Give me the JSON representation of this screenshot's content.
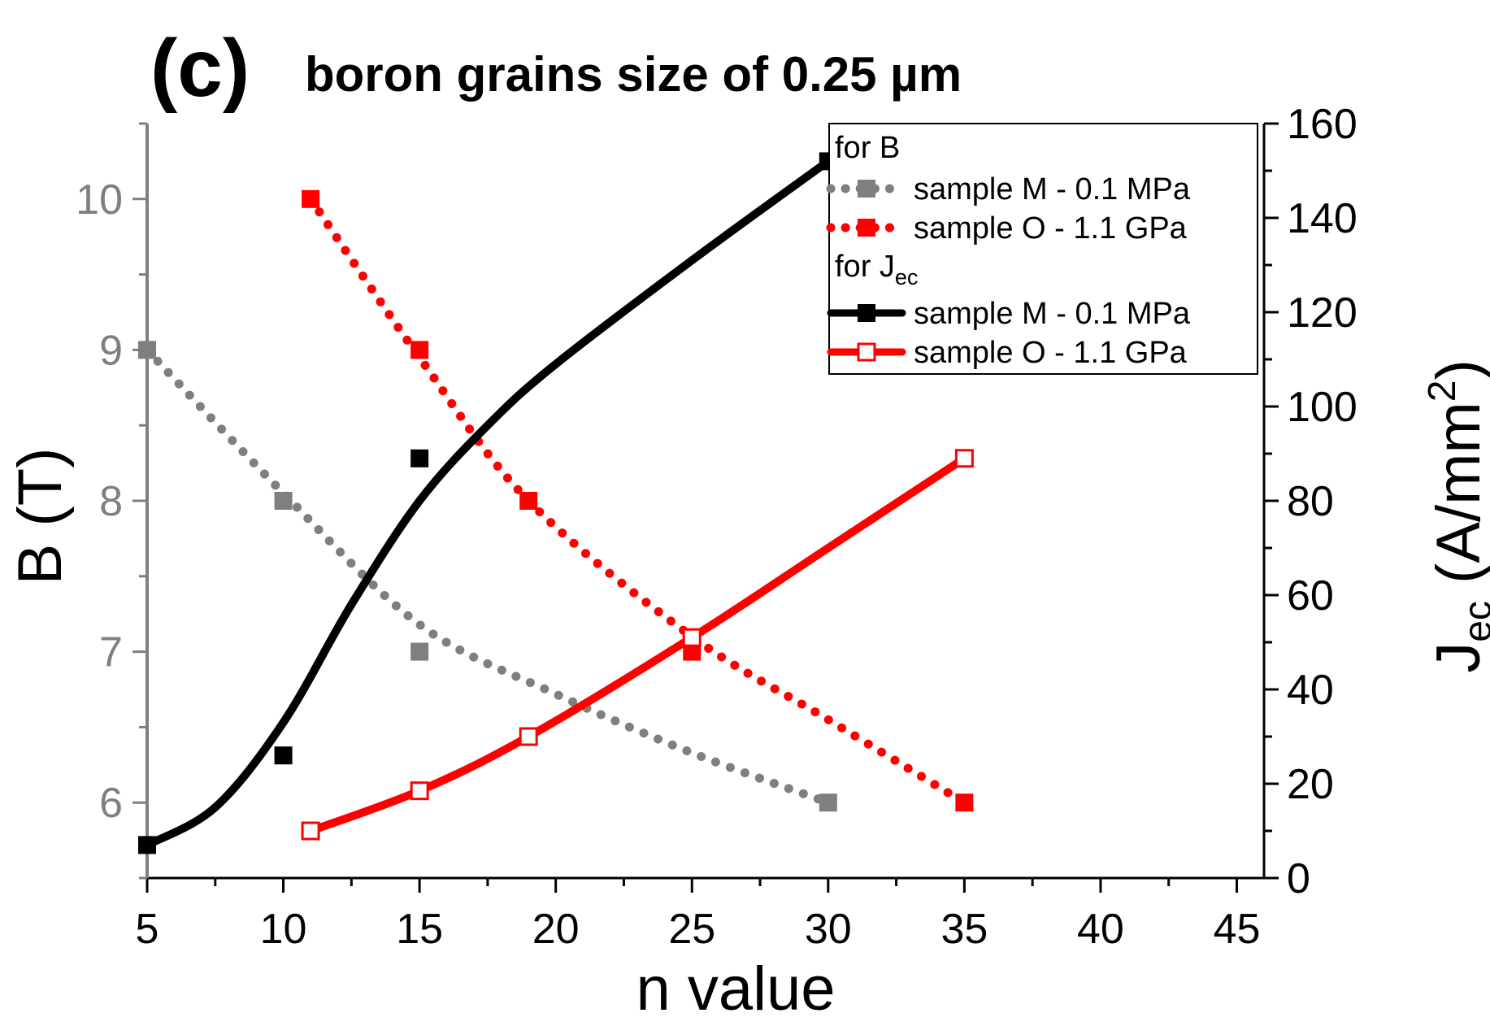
{
  "chart_data": {
    "type": "line",
    "panel_label": "(c)",
    "title": "boron grains size of 0.25 µm",
    "xlabel": "n value",
    "ylabel_left": "B (T)",
    "ylabel_right_main": "J",
    "ylabel_right_sub": "ec",
    "ylabel_right_unit": " (A/mm",
    "ylabel_right_sup": "2",
    "ylabel_right_close": ")",
    "xlim": [
      5,
      46
    ],
    "ylim_left": [
      5.5,
      10.5
    ],
    "ylim_right": [
      0,
      160
    ],
    "x_ticks": [
      5,
      10,
      15,
      20,
      25,
      30,
      35,
      40,
      45
    ],
    "y_left_ticks": [
      6,
      7,
      8,
      9,
      10
    ],
    "y_right_ticks": [
      0,
      20,
      40,
      60,
      80,
      100,
      120,
      140,
      160
    ],
    "legend": {
      "group_b_label": "for B",
      "group_j_main": "for J",
      "group_j_sub": "ec",
      "entries": [
        {
          "id": "bM",
          "label": "sample M - 0.1 MPa"
        },
        {
          "id": "bO",
          "label": "sample O - 1.1 GPa"
        },
        {
          "id": "jM",
          "label": "sample M - 0.1 MPa"
        },
        {
          "id": "jO",
          "label": "sample O - 1.1 GPa"
        }
      ]
    },
    "series": [
      {
        "id": "bM",
        "name": "for B: sample M - 0.1 MPa",
        "axis": "left",
        "style": "dotted",
        "color": "#7f7f7f",
        "marker": "filled-square",
        "points": [
          [
            5,
            9.0
          ],
          [
            10,
            8.0
          ],
          [
            15,
            7.0
          ],
          [
            30,
            6.0
          ]
        ],
        "fit": [
          [
            5,
            9.0
          ],
          [
            10,
            8.05
          ],
          [
            15,
            7.18
          ],
          [
            20,
            6.72
          ],
          [
            25,
            6.33
          ],
          [
            30,
            6.0
          ]
        ]
      },
      {
        "id": "bO",
        "name": "for B: sample O - 1.1 GPa",
        "axis": "left",
        "style": "dotted",
        "color": "#ff0000",
        "marker": "filled-square",
        "points": [
          [
            11,
            10.0
          ],
          [
            15,
            9.0
          ],
          [
            19,
            8.0
          ],
          [
            25,
            7.0
          ],
          [
            35,
            6.0
          ]
        ],
        "fit": [
          [
            11,
            10.0
          ],
          [
            15,
            8.95
          ],
          [
            19,
            8.0
          ],
          [
            25,
            7.1
          ],
          [
            30,
            6.55
          ],
          [
            35,
            6.0
          ]
        ]
      },
      {
        "id": "jM",
        "name": "for Jec: sample M - 0.1 MPa",
        "axis": "right",
        "style": "solid",
        "color": "#000000",
        "marker": "filled-square",
        "points": [
          [
            5,
            7
          ],
          [
            10,
            26
          ],
          [
            15,
            89
          ],
          [
            30,
            152
          ]
        ],
        "fit": [
          [
            5,
            7
          ],
          [
            7.5,
            15
          ],
          [
            10,
            33
          ],
          [
            12.5,
            58
          ],
          [
            15,
            80
          ],
          [
            17.5,
            96
          ],
          [
            20,
            109
          ],
          [
            25,
            131
          ],
          [
            30,
            152
          ]
        ]
      },
      {
        "id": "jO",
        "name": "for Jec: sample O - 1.1 GPa",
        "axis": "right",
        "style": "solid",
        "color": "#ff0000",
        "marker": "open-square",
        "points": [
          [
            11,
            10
          ],
          [
            15,
            18.5
          ],
          [
            19,
            30
          ],
          [
            25,
            51
          ],
          [
            35,
            89
          ]
        ],
        "fit": [
          [
            11,
            10
          ],
          [
            15,
            18.5
          ],
          [
            19,
            30
          ],
          [
            25,
            51
          ],
          [
            30,
            70
          ],
          [
            35,
            89
          ]
        ]
      }
    ]
  }
}
